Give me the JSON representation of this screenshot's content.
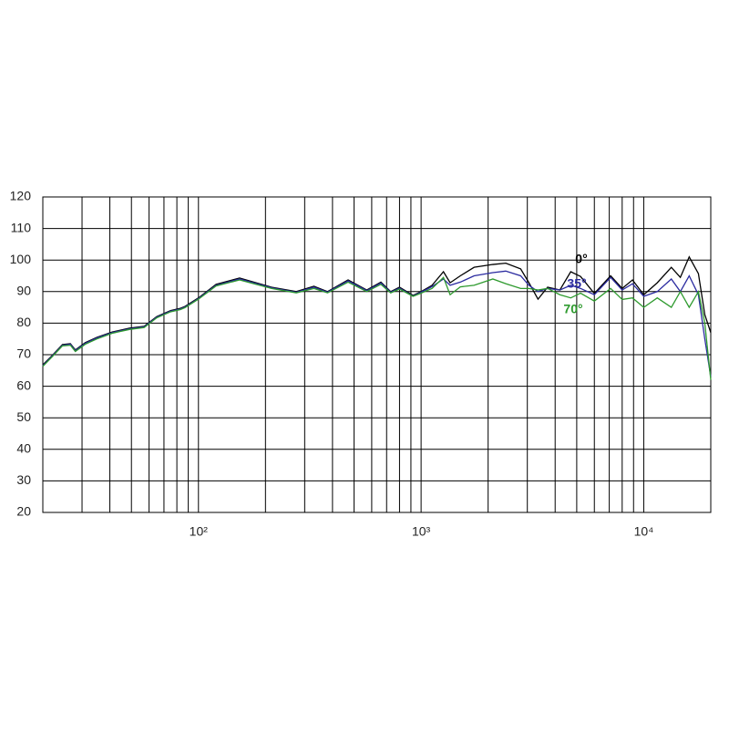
{
  "chart_data": {
    "type": "line",
    "x": [
      20,
      22,
      24.5,
      26.6,
      28,
      31,
      35,
      41,
      49,
      57,
      65,
      75,
      83,
      87,
      100,
      120,
      153,
      213,
      275,
      330,
      380,
      470,
      570,
      660,
      730,
      800,
      920,
      1000,
      1120,
      1260,
      1350,
      1500,
      1730,
      2100,
      2400,
      2800,
      3050,
      3350,
      3700,
      4200,
      4700,
      5200,
      6000,
      7100,
      8000,
      8900,
      10000,
      11500,
      13300,
      14600,
      16000,
      17600,
      18800,
      20000
    ],
    "series": [
      {
        "name": "0°",
        "color": "#000000",
        "values": [
          66.8,
          69.7,
          73.2,
          73.5,
          71.5,
          73.8,
          75.5,
          77.2,
          78.4,
          79,
          82.1,
          84,
          84.7,
          85.3,
          88,
          92.3,
          94.3,
          91.4,
          90,
          91.7,
          90,
          93.7,
          90.5,
          93,
          90,
          91.4,
          88.8,
          90,
          92,
          96.3,
          92.8,
          95,
          97.7,
          98.6,
          99,
          97.2,
          92.8,
          87.6,
          91.4,
          90.5,
          96.3,
          94.8,
          89.4,
          95,
          91,
          93.7,
          89,
          92.8,
          97.7,
          94.5,
          101,
          95.7,
          82.7,
          77
        ]
      },
      {
        "name": "35°",
        "color": "#2b2ba0",
        "values": [
          66.5,
          69.5,
          73,
          73.3,
          71.3,
          73.6,
          75.3,
          77,
          78.2,
          78.8,
          81.9,
          83.8,
          84.5,
          85.1,
          87.8,
          92,
          94,
          91.2,
          89.8,
          91.4,
          89.8,
          93.4,
          90.3,
          92.7,
          89.8,
          91.1,
          88.6,
          89.8,
          91.6,
          94,
          92,
          93,
          95,
          96,
          96.5,
          95,
          92,
          90,
          91,
          90.5,
          92,
          91,
          89,
          94.5,
          90.5,
          92.5,
          88.5,
          90,
          94,
          90,
          95,
          89,
          75,
          63
        ]
      },
      {
        "name": "70°",
        "color": "#2e9a2e",
        "values": [
          66.3,
          69.3,
          72.8,
          73,
          71,
          73.3,
          75,
          76.8,
          78,
          78.6,
          81.7,
          83.6,
          84.3,
          84.9,
          87.6,
          91.8,
          93.7,
          91,
          89.6,
          91,
          89.6,
          93,
          90,
          92.3,
          89.6,
          90.8,
          88.5,
          89.5,
          91,
          94.5,
          89,
          91.5,
          92,
          94,
          92.5,
          91,
          91,
          90.5,
          91,
          89,
          88,
          89.5,
          87,
          91,
          87.5,
          88,
          85,
          88,
          85,
          90,
          85,
          90,
          80,
          62
        ]
      }
    ],
    "xlim": [
      20,
      20000
    ],
    "xscale": "log",
    "xticks": [
      {
        "value": 100,
        "label": "10²"
      },
      {
        "value": 1000,
        "label": "10³"
      },
      {
        "value": 10000,
        "label": "10⁴"
      }
    ],
    "ylim": [
      20,
      120
    ],
    "yticks": [
      20,
      30,
      40,
      50,
      60,
      70,
      80,
      90,
      100,
      110,
      120
    ],
    "grid": true
  }
}
